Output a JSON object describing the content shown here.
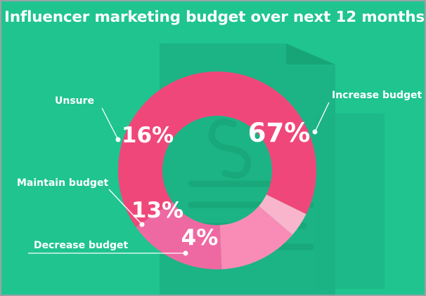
{
  "chart_data": {
    "type": "pie",
    "title": "Influencer marketing budget over next 12 months",
    "slices": [
      {
        "label": "Increase budget",
        "value": 67,
        "value_label": "67%",
        "color": "#f0477a"
      },
      {
        "label": "Decrease budget",
        "value": 4,
        "value_label": "4%",
        "color": "#f8b5cc"
      },
      {
        "label": "Maintain budget",
        "value": 13,
        "value_label": "13%",
        "color": "#f88cb6"
      },
      {
        "label": "Unsure",
        "value": 16,
        "value_label": "16%",
        "color": "#ee69a2"
      }
    ],
    "donut": true,
    "legend": "none",
    "background_color": "#1fc48e",
    "background_icon": "document-dollar-icon"
  }
}
